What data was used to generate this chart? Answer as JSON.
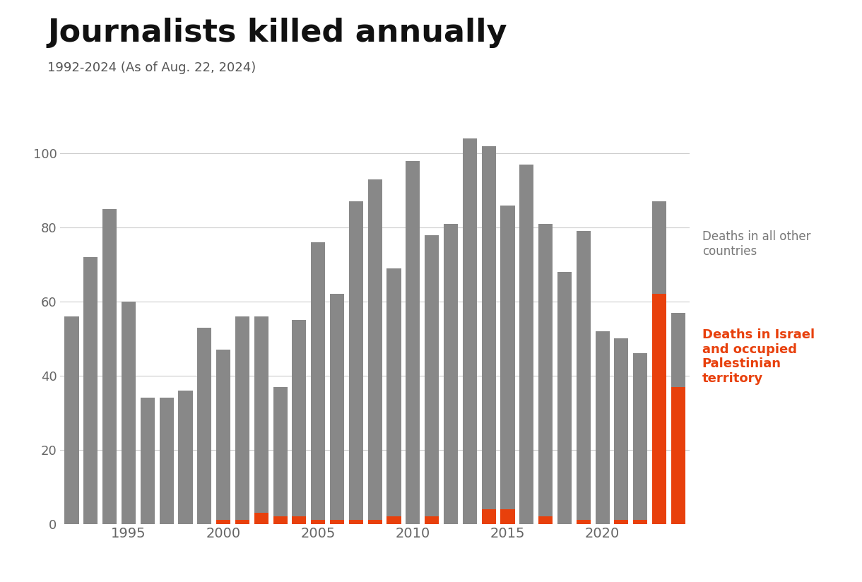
{
  "years": [
    1992,
    1993,
    1994,
    1995,
    1996,
    1997,
    1998,
    1999,
    2000,
    2001,
    2002,
    2003,
    2004,
    2005,
    2006,
    2007,
    2008,
    2009,
    2010,
    2011,
    2012,
    2013,
    2014,
    2015,
    2016,
    2017,
    2018,
    2019,
    2020,
    2021,
    2022,
    2023,
    2024
  ],
  "other_countries": [
    56,
    72,
    85,
    60,
    34,
    34,
    36,
    53,
    46,
    55,
    53,
    35,
    53,
    75,
    61,
    86,
    92,
    67,
    98,
    76,
    81,
    104,
    98,
    82,
    97,
    79,
    68,
    78,
    52,
    49,
    45,
    25,
    20
  ],
  "israel_opt": [
    0,
    0,
    0,
    0,
    0,
    0,
    0,
    0,
    1,
    1,
    3,
    2,
    2,
    1,
    1,
    1,
    1,
    2,
    0,
    2,
    0,
    0,
    4,
    4,
    0,
    2,
    0,
    1,
    0,
    1,
    1,
    62,
    37
  ],
  "title": "Journalists killed annually",
  "subtitle": "1992-2024 (As of Aug. 22, 2024)",
  "legend_gray": "Deaths in all other\ncountries",
  "legend_orange": "Deaths in Israel\nand occupied\nPalestinian\nterritory",
  "bar_color_gray": "#888888",
  "bar_color_orange": "#E8400C",
  "background_color": "#ffffff",
  "ylim": [
    0,
    110
  ],
  "yticks": [
    0,
    20,
    40,
    60,
    80,
    100
  ],
  "title_fontsize": 32,
  "subtitle_fontsize": 13,
  "legend_gray_fontsize": 12,
  "legend_orange_fontsize": 13
}
